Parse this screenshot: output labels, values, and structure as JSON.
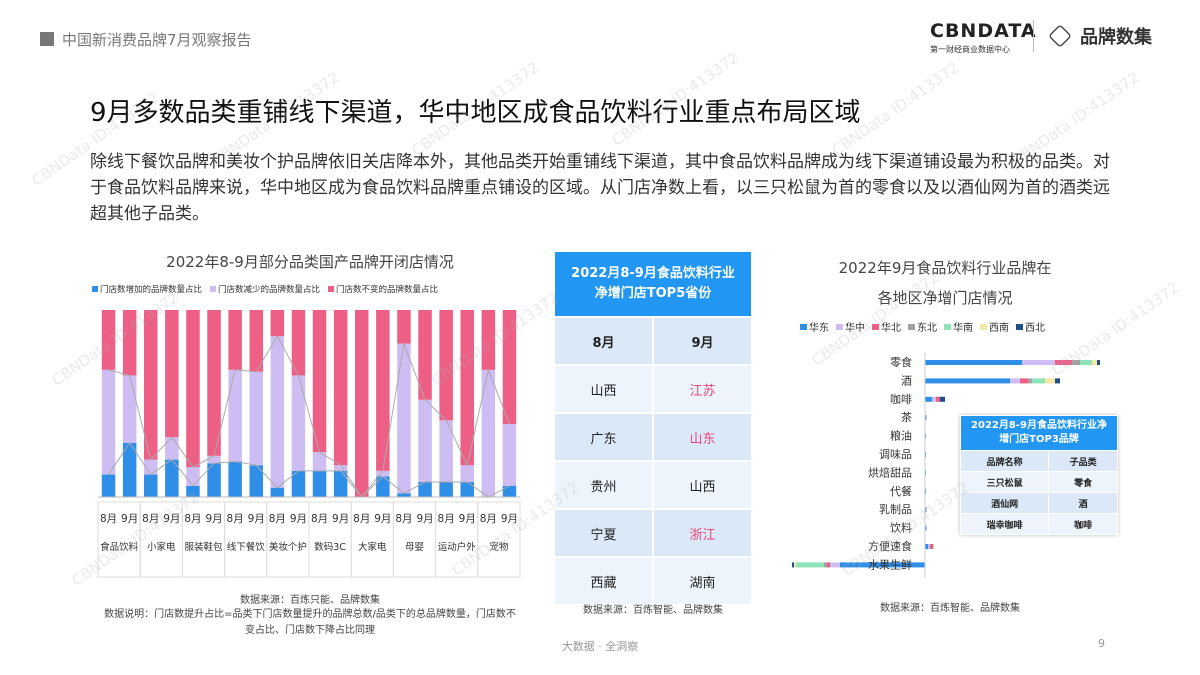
{
  "header": {
    "report": "中国新消费品牌7月观察报告",
    "logo": "CBNDATA",
    "logo_sub": "第一财经商业数据中心",
    "logo2": "品牌数集"
  },
  "watermark": "CBNData ID:413372",
  "title": "9月多数品类重铺线下渠道，华中地区成食品饮料行业重点布局区域",
  "body": "除线下餐饮品牌和美妆个护品牌依旧关店降本外，其他品类开始重铺线下渠道，其中食品饮料品牌成为线下渠道铺设最为积极的品类。对于食品饮料品牌来说，华中地区成为食品饮料品牌重点铺设的区域。从门店净数上看，以三只松鼠为首的零食以及以酒仙网为首的酒类远超其他子品类。",
  "chart_data": [
    {
      "type": "stacked_bar",
      "title": "2022年8-9月部分品类国产品牌开闭店情况",
      "categories": [
        "8月",
        "9月",
        "8月",
        "9月",
        "8月",
        "9月",
        "8月",
        "9月",
        "8月",
        "9月",
        "8月",
        "9月",
        "8月",
        "9月",
        "8月",
        "9月",
        "8月",
        "9月",
        "8月",
        "9月"
      ],
      "groups": [
        "食品饮料",
        "小家电",
        "服装鞋包",
        "线下餐饮",
        "美妆个护",
        "数码3C",
        "大家电",
        "母婴",
        "运动户外",
        "宠物"
      ],
      "ylim": [
        0,
        100
      ],
      "series": [
        {
          "name": "门店数增加的品牌数量占比",
          "color": "#2e8ee8",
          "values": [
            12,
            29,
            12,
            20,
            6,
            18,
            19,
            17,
            5,
            14,
            14,
            14,
            0,
            11,
            2,
            8,
            8,
            8,
            0,
            6
          ]
        },
        {
          "name": "门店数减少的品牌数量占比",
          "color": "#cdbdf2",
          "values": [
            56,
            36,
            8,
            12,
            10,
            4,
            49,
            50,
            81,
            51,
            10,
            3,
            0,
            3,
            80,
            44,
            33,
            9,
            68,
            33
          ]
        },
        {
          "name": "门店数不变的品牌数量占比",
          "color": "#ee5f86",
          "values": [
            32,
            35,
            80,
            68,
            84,
            78,
            32,
            33,
            14,
            35,
            76,
            83,
            100,
            86,
            18,
            48,
            59,
            83,
            32,
            61
          ]
        }
      ],
      "source": "数据来源：百炼只能、品牌数集",
      "note": "数据说明：门店数提升占比=品类下门店数量提升的品牌总数/品类下的总品牌数量，门店数不变占比、门店数下降占比同理"
    },
    {
      "type": "horizontal_stacked_bar",
      "title": "2022年9月食品饮料行业品牌在各地区净增门店情况",
      "categories": [
        "零食",
        "酒",
        "咖啡",
        "茶",
        "粮油",
        "调味品",
        "烘焙甜品",
        "代餐",
        "乳制品",
        "饮料",
        "方便速食",
        "水果生鲜"
      ],
      "xlim": [
        -130,
        180
      ],
      "series": [
        {
          "name": "华东",
          "color": "#2e8ee8",
          "values": [
            97,
            85,
            7,
            1,
            1,
            1,
            1,
            1,
            1,
            1,
            3,
            -85
          ]
        },
        {
          "name": "华中",
          "color": "#cdbdf2",
          "values": [
            33,
            10,
            4,
            1,
            0,
            0,
            0,
            0,
            1,
            1,
            2,
            -10
          ]
        },
        {
          "name": "华北",
          "color": "#ee5f86",
          "values": [
            17,
            8,
            4,
            0,
            0,
            0,
            0,
            0,
            0,
            0,
            3,
            -3
          ]
        },
        {
          "name": "东北",
          "color": "#a3a3a3",
          "values": [
            8,
            4,
            0,
            0,
            0,
            0,
            0,
            0,
            0,
            0,
            0,
            -3
          ]
        },
        {
          "name": "华南",
          "color": "#8fe3b8",
          "values": [
            12,
            13,
            0,
            0,
            0,
            0,
            0,
            0,
            0,
            0,
            1,
            -28
          ]
        },
        {
          "name": "西南",
          "color": "#f5e9a6",
          "values": [
            5,
            10,
            0,
            0,
            0,
            0,
            0,
            0,
            0,
            0,
            0,
            -2
          ]
        },
        {
          "name": "西北",
          "color": "#1f4e8c",
          "values": [
            3,
            5,
            5,
            0,
            0,
            0,
            0,
            0,
            0,
            0,
            0,
            -2
          ]
        }
      ],
      "source": "数据来源：百炼智能、品牌数集"
    }
  ],
  "table": {
    "title": "2022月8-9月食品饮料行业净增门店TOP5省份",
    "columns": [
      "8月",
      "9月"
    ],
    "rows": [
      [
        "山西",
        "江苏"
      ],
      [
        "广东",
        "山东"
      ],
      [
        "贵州",
        "山西"
      ],
      [
        "宁夏",
        "浙江"
      ],
      [
        "西藏",
        "湖南"
      ]
    ],
    "highlighted": [
      true,
      true,
      false,
      true,
      false
    ],
    "highlight_color": "#e8457a",
    "source": "数据来源：百炼智能、品牌数集"
  },
  "inset_table": {
    "title": "2022月8-9月食品饮料行业净增门店TOP3品牌",
    "columns": [
      "品牌名称",
      "子品类"
    ],
    "rows": [
      [
        "三只松鼠",
        "零食"
      ],
      [
        "酒仙网",
        "酒"
      ],
      [
        "瑞幸咖啡",
        "咖啡"
      ]
    ]
  },
  "footer": "大数据 · 全洞察",
  "page_number": "9"
}
